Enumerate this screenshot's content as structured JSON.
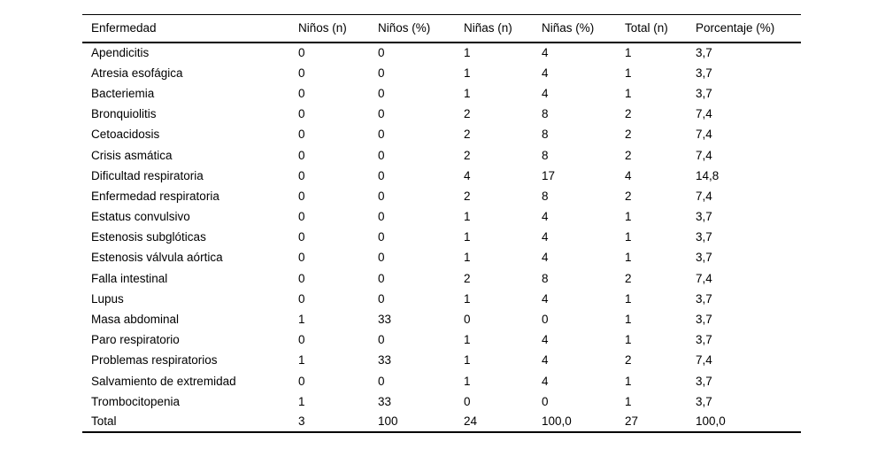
{
  "colors": {
    "background": "#ffffff",
    "text": "#000000",
    "border": "#000000"
  },
  "chart_data": {
    "type": "table",
    "columns": [
      "Enfermedad",
      "Niños (n)",
      "Niños (%)",
      "Niñas (n)",
      "Niñas (%)",
      "Total (n)",
      "Porcentaje (%)"
    ],
    "rows": [
      [
        "Apendicitis",
        "0",
        "0",
        "1",
        "4",
        "1",
        "3,7"
      ],
      [
        "Atresia esofágica",
        "0",
        "0",
        "1",
        "4",
        "1",
        "3,7"
      ],
      [
        "Bacteriemia",
        "0",
        "0",
        "1",
        "4",
        "1",
        "3,7"
      ],
      [
        "Bronquiolitis",
        "0",
        "0",
        "2",
        "8",
        "2",
        "7,4"
      ],
      [
        "Cetoacidosis",
        "0",
        "0",
        "2",
        "8",
        "2",
        "7,4"
      ],
      [
        "Crisis asmática",
        "0",
        "0",
        "2",
        "8",
        "2",
        "7,4"
      ],
      [
        "Dificultad respiratoria",
        "0",
        "0",
        "4",
        "17",
        "4",
        "14,8"
      ],
      [
        "Enfermedad respiratoria",
        "0",
        "0",
        "2",
        "8",
        "2",
        "7,4"
      ],
      [
        "Estatus convulsivo",
        "0",
        "0",
        "1",
        "4",
        "1",
        "3,7"
      ],
      [
        "Estenosis subglóticas",
        "0",
        "0",
        "1",
        "4",
        "1",
        "3,7"
      ],
      [
        "Estenosis válvula aórtica",
        "0",
        "0",
        "1",
        "4",
        "1",
        "3,7"
      ],
      [
        "Falla intestinal",
        "0",
        "0",
        "2",
        "8",
        "2",
        "7,4"
      ],
      [
        "Lupus",
        "0",
        "0",
        "1",
        "4",
        "1",
        "3,7"
      ],
      [
        "Masa abdominal",
        "1",
        "33",
        "0",
        "0",
        "1",
        "3,7"
      ],
      [
        "Paro respiratorio",
        "0",
        "0",
        "1",
        "4",
        "1",
        "3,7"
      ],
      [
        "Problemas respiratorios",
        "1",
        "33",
        "1",
        "4",
        "2",
        "7,4"
      ],
      [
        "Salvamiento de extremidad",
        "0",
        "0",
        "1",
        "4",
        "1",
        "3,7"
      ],
      [
        "Trombocitopenia",
        "1",
        "33",
        "0",
        "0",
        "1",
        "3,7"
      ],
      [
        "Total",
        "3",
        "100",
        "24",
        "100,0",
        "27",
        "100,0"
      ]
    ]
  }
}
